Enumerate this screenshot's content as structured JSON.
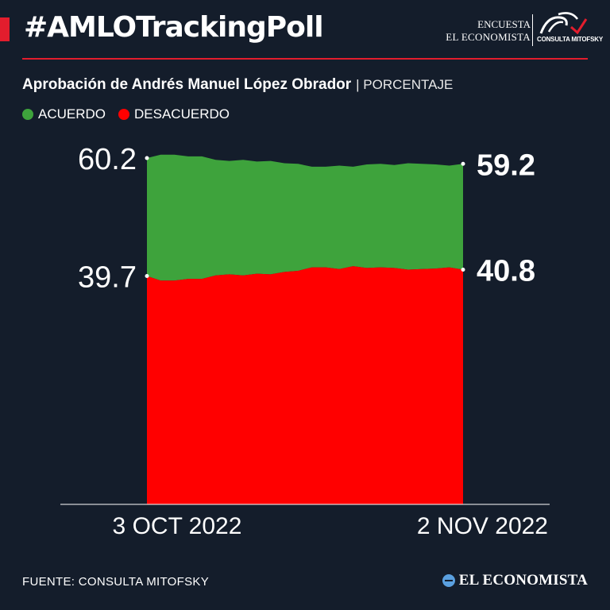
{
  "header": {
    "hashtag": "#AMLOTrackingPoll",
    "brand_line1": "ENCUESTA",
    "brand_line2": "EL ECONOMISTA",
    "partner_logo": "CONSULTA MITOFSKY"
  },
  "subtitle": "Aprobación de Andrés Manuel López Obrador",
  "unit": "| PORCENTAJE",
  "legend": [
    {
      "label": "ACUERDO",
      "color": "#3ea33c"
    },
    {
      "label": "DESACUERDO",
      "color": "#ff0000"
    }
  ],
  "chart_data": {
    "type": "area",
    "x_labels": [
      "3 OCT 2022",
      "2 NOV 2022"
    ],
    "y_labels": [
      "60.2",
      "39.7"
    ],
    "end_labels": [
      "59.2",
      "40.8"
    ],
    "stacked_to": 100,
    "series": [
      {
        "name": "ACUERDO",
        "color": "#3ea33c",
        "values": [
          60.2,
          60.8,
          60.8,
          60.5,
          60.5,
          59.9,
          59.7,
          59.9,
          59.6,
          59.7,
          59.3,
          59.2,
          58.7,
          58.7,
          58.9,
          58.7,
          59.1,
          59.2,
          59.0,
          59.3,
          59.2,
          59.1,
          58.9,
          59.2
        ]
      },
      {
        "name": "DESACUERDO",
        "color": "#ff0000",
        "values": [
          39.7,
          38.9,
          38.9,
          39.2,
          39.2,
          39.8,
          40.0,
          39.8,
          40.1,
          40.0,
          40.4,
          40.6,
          41.2,
          41.2,
          40.9,
          41.4,
          41.1,
          41.2,
          41.1,
          40.8,
          40.9,
          41.0,
          41.2,
          40.8
        ]
      }
    ]
  },
  "footer": {
    "source": "FUENTE: CONSULTA MITOFSKY",
    "brand": "EL ECONOMISTA"
  }
}
